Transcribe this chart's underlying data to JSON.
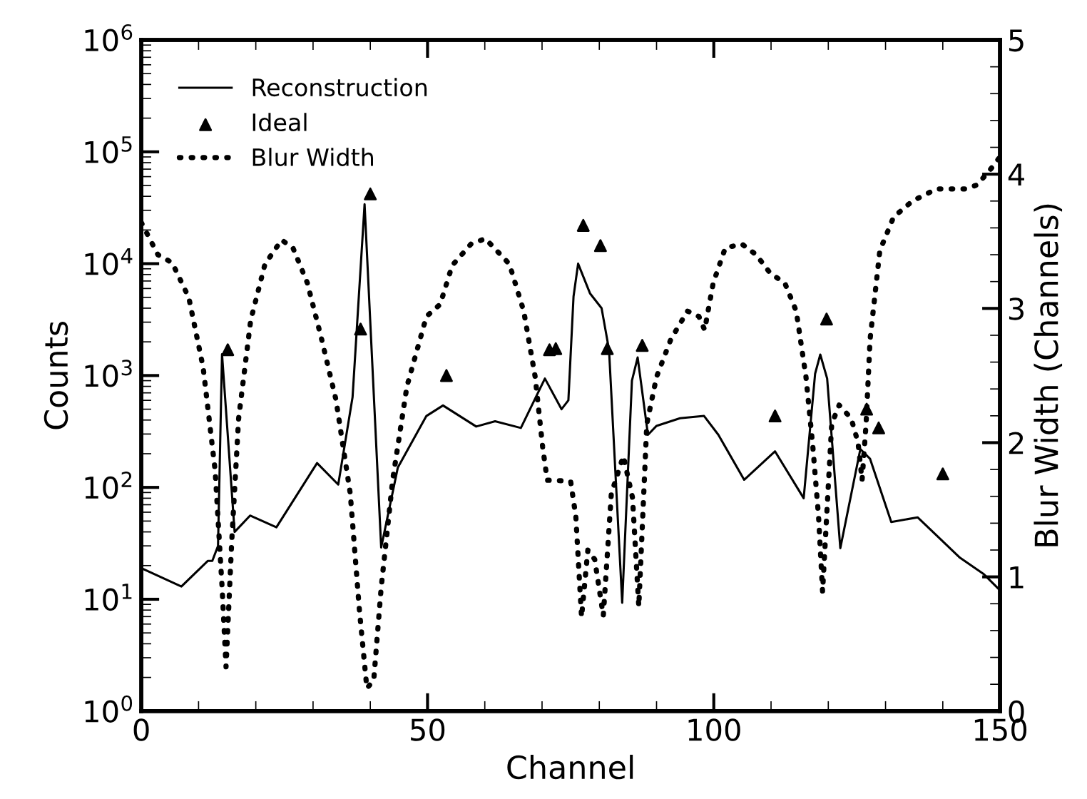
{
  "chart_data": {
    "type": "line",
    "xlabel": "Channel",
    "ylabel": "Counts",
    "y2label": "Blur Width (Channels)",
    "log": "y",
    "grid": false,
    "legend": "top left",
    "xlim": [
      0,
      150
    ],
    "xticks": [
      0,
      50,
      100,
      150
    ],
    "ylim": [
      1,
      1000000
    ],
    "yticks": [
      {
        "value": 1,
        "label": "10$^{0}$"
      },
      {
        "value": 10,
        "label": "10$^{1}$"
      },
      {
        "value": 100,
        "label": "10$^{2}$"
      },
      {
        "value": 1000,
        "label": "10$^{3}$"
      },
      {
        "value": 10000,
        "label": "10$^{4}$"
      },
      {
        "value": 100000,
        "label": "10$^{5}$"
      },
      {
        "value": 1000000,
        "label": "10$^{6}$"
      }
    ],
    "y2lim": [
      0,
      5
    ],
    "y2ticks": [
      0,
      1,
      2,
      3,
      4,
      5
    ],
    "series": [
      {
        "name": "Reconstruction",
        "color": "#000000",
        "line_style": "solid",
        "marker": "none",
        "x": [
          0,
          7,
          11.6,
          12.4,
          13.4,
          14.1,
          16.3,
          19,
          23.6,
          30.7,
          34.4,
          36.9,
          39,
          41.9,
          44.8,
          49.8,
          52.7,
          58.5,
          61.8,
          66.3,
          70.5,
          73.4,
          74.6,
          75.5,
          76.3,
          78.4,
          80.4,
          81.7,
          84,
          85.7,
          86.7,
          88.5,
          90,
          94.1,
          98.3,
          100.8,
          105.3,
          110.7,
          115.7,
          117.7,
          118.6,
          119.8,
          122.1,
          125.6,
          127.3,
          131,
          135.6,
          143,
          147.2,
          150
        ],
        "values": [
          19,
          13,
          22,
          22,
          30,
          1550,
          40,
          56,
          44,
          165,
          106,
          640,
          34000,
          29,
          150,
          435,
          540,
          350,
          390,
          340,
          940,
          500,
          600,
          5100,
          10000,
          5400,
          4000,
          1700,
          9.3,
          900,
          1450,
          295,
          355,
          415,
          435,
          295,
          117,
          210,
          80,
          1040,
          1540,
          940,
          28.6,
          220,
          180,
          49,
          54,
          23.5,
          16.7,
          12
        ]
      },
      {
        "name": "Ideal",
        "type": "scatter",
        "color": "#000000",
        "marker": "triangle",
        "x": [
          15.1,
          38.3,
          40,
          53.3,
          71.3,
          72.4,
          77.2,
          80.2,
          81.4,
          87.5,
          110.7,
          119.7,
          126.7,
          128.8,
          140
        ],
        "values": [
          1700,
          2600,
          42000,
          1000,
          1700,
          1740,
          22000,
          14500,
          1740,
          1860,
          435,
          3200,
          500,
          340,
          132
        ]
      },
      {
        "name": "Blur Width",
        "type": "line",
        "axis": "y2",
        "color": "#000000",
        "line_style": "dotted",
        "marker": "none",
        "x": [
          0,
          2.9,
          5.4,
          8.3,
          10.8,
          12.9,
          14.1,
          14.8,
          15.8,
          17,
          19.1,
          21.6,
          24.5,
          26.5,
          29,
          31.5,
          34,
          36.5,
          38.1,
          39.4,
          40.6,
          41.9,
          43.9,
          46.4,
          49.8,
          52.2,
          54.3,
          57.6,
          60.1,
          64.3,
          66.8,
          68.8,
          70.1,
          70.9,
          72.1,
          75,
          75.9,
          76.9,
          78,
          79.2,
          80.7,
          82.1,
          84.2,
          85.8,
          86.9,
          88.3,
          90,
          92.5,
          95.4,
          97.4,
          98.4,
          99.9,
          102,
          104.9,
          107.4,
          109.9,
          112.4,
          114.4,
          116.1,
          117.3,
          118.3,
          119,
          119.8,
          120.6,
          121.9,
          124,
          125.2,
          125.9,
          126.6,
          127.3,
          129,
          131.4,
          134.7,
          138.9,
          143.9,
          146,
          148.8,
          150
        ],
        "values": [
          3.64,
          3.4,
          3.34,
          3.08,
          2.56,
          1.79,
          0.93,
          0.33,
          1.27,
          2.18,
          2.91,
          3.33,
          3.51,
          3.45,
          3.19,
          2.77,
          2.32,
          1.62,
          0.75,
          0.17,
          0.23,
          0.92,
          1.72,
          2.42,
          2.94,
          3.03,
          3.32,
          3.48,
          3.52,
          3.33,
          2.98,
          2.49,
          1.97,
          1.72,
          1.72,
          1.71,
          1.45,
          0.7,
          1.2,
          1.13,
          0.71,
          1.62,
          1.9,
          1.59,
          0.78,
          2.14,
          2.49,
          2.77,
          2.98,
          2.94,
          2.84,
          3.19,
          3.45,
          3.48,
          3.4,
          3.26,
          3.19,
          2.98,
          2.49,
          1.97,
          1.45,
          0.89,
          1.52,
          2.14,
          2.28,
          2.18,
          2.0,
          1.72,
          2.14,
          2.77,
          3.43,
          3.68,
          3.8,
          3.89,
          3.89,
          3.92,
          4.06,
          4.13
        ]
      }
    ]
  }
}
